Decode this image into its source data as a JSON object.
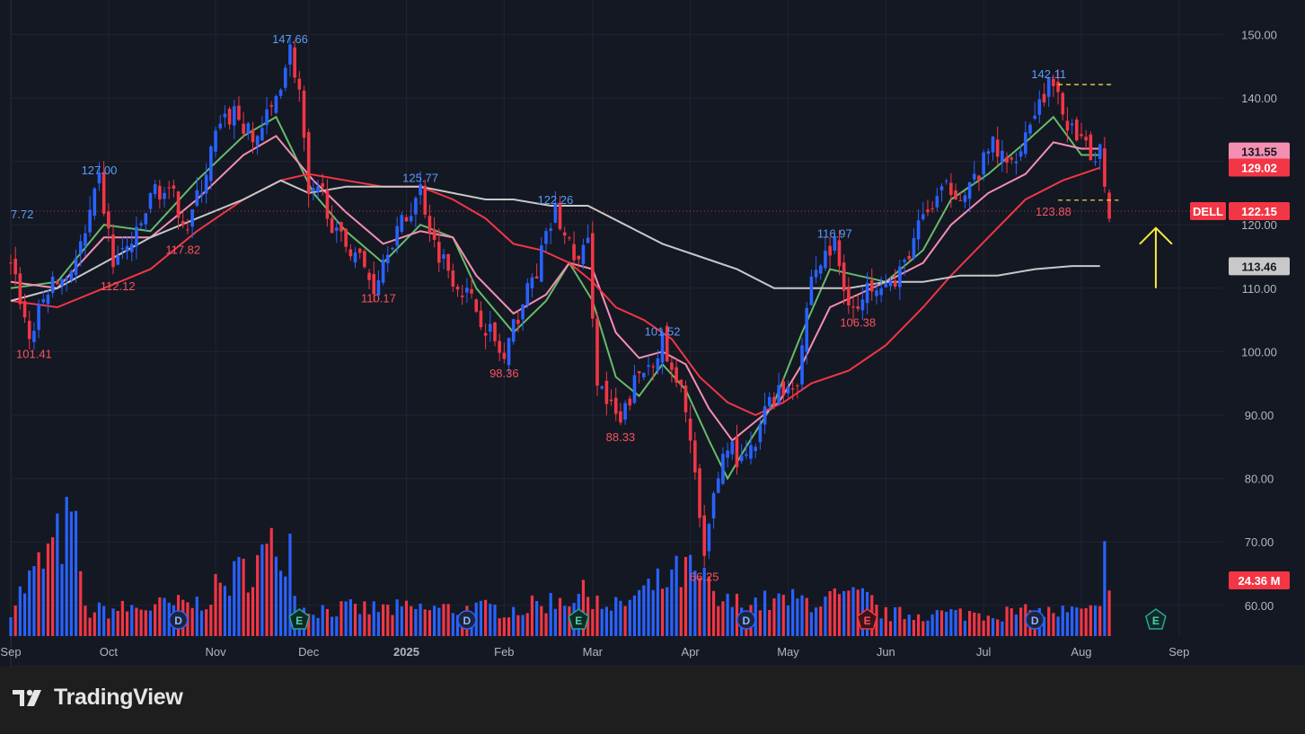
{
  "colors": {
    "background": "#141823",
    "grid": "#1f2431",
    "up": "#2962ff",
    "down": "#f23645",
    "ma_green": "#66bb6a",
    "ma_pink": "#f48fb1",
    "ma_red": "#f23645",
    "ma_gray": "#c8c8c8",
    "axis_text": "#b2b5be",
    "highlight_yellow": "#ffeb3b"
  },
  "branding": {
    "name": "TradingView"
  },
  "chart_data": {
    "type": "candlestick",
    "ticker": "DELL",
    "y_axis": {
      "ticks": [
        "150.00",
        "140.00",
        "130.00",
        "120.00",
        "110.00",
        "100.00",
        "90.00",
        "80.00",
        "70.00",
        "60.00"
      ],
      "tick_values": [
        150,
        140,
        130,
        120,
        110,
        100,
        90,
        80,
        70,
        60
      ]
    },
    "x_axis": {
      "labels": [
        {
          "label": "Sep",
          "x": 0
        },
        {
          "label": "Oct",
          "x": 21
        },
        {
          "label": "Nov",
          "x": 44
        },
        {
          "label": "Dec",
          "x": 64
        },
        {
          "label": "2025",
          "x": 85
        },
        {
          "label": "Feb",
          "x": 106
        },
        {
          "label": "Mar",
          "x": 125
        },
        {
          "label": "Apr",
          "x": 146
        },
        {
          "label": "May",
          "x": 167
        },
        {
          "label": "Jun",
          "x": 188
        },
        {
          "label": "Jul",
          "x": 209
        },
        {
          "label": "Aug",
          "x": 230
        },
        {
          "label": "Sep",
          "x": 251
        }
      ]
    },
    "price_path": [
      [
        0,
        115
      ],
      [
        4,
        102
      ],
      [
        8,
        110
      ],
      [
        12,
        112
      ],
      [
        16,
        118
      ],
      [
        19,
        127
      ],
      [
        22,
        114
      ],
      [
        27,
        118
      ],
      [
        31,
        126
      ],
      [
        35,
        124
      ],
      [
        38,
        120
      ],
      [
        41,
        126
      ],
      [
        44,
        134
      ],
      [
        48,
        138
      ],
      [
        52,
        133
      ],
      [
        56,
        138
      ],
      [
        60,
        147.66
      ],
      [
        62,
        141
      ],
      [
        64,
        124
      ],
      [
        67,
        125
      ],
      [
        70,
        118
      ],
      [
        74,
        116
      ],
      [
        78,
        110.17
      ],
      [
        81,
        117
      ],
      [
        85,
        121
      ],
      [
        88,
        125.77
      ],
      [
        91,
        117
      ],
      [
        95,
        112
      ],
      [
        99,
        108
      ],
      [
        103,
        103
      ],
      [
        106,
        98.36
      ],
      [
        109,
        106
      ],
      [
        113,
        113
      ],
      [
        117,
        122.26
      ],
      [
        119,
        118
      ],
      [
        122,
        114
      ],
      [
        124,
        117
      ],
      [
        126,
        96
      ],
      [
        128,
        92
      ],
      [
        131,
        88.33
      ],
      [
        134,
        95
      ],
      [
        137,
        98
      ],
      [
        140,
        101.52
      ],
      [
        142,
        96
      ],
      [
        145,
        92
      ],
      [
        147,
        80
      ],
      [
        149,
        66.25
      ],
      [
        151,
        78
      ],
      [
        154,
        86
      ],
      [
        157,
        82
      ],
      [
        160,
        85
      ],
      [
        163,
        93
      ],
      [
        166,
        94
      ],
      [
        169,
        96
      ],
      [
        172,
        112
      ],
      [
        175,
        115
      ],
      [
        177,
        116.97
      ],
      [
        179,
        110
      ],
      [
        182,
        106.38
      ],
      [
        185,
        111
      ],
      [
        188,
        112
      ],
      [
        190,
        110
      ],
      [
        193,
        116
      ],
      [
        196,
        121
      ],
      [
        199,
        124
      ],
      [
        202,
        126
      ],
      [
        205,
        125
      ],
      [
        208,
        128
      ],
      [
        211,
        133
      ],
      [
        214,
        129
      ],
      [
        217,
        133
      ],
      [
        220,
        138
      ],
      [
        223,
        142.11
      ],
      [
        226,
        138
      ],
      [
        229,
        133
      ],
      [
        232,
        131
      ],
      [
        234,
        132
      ],
      [
        236,
        122.15
      ]
    ],
    "volume_profile": [
      [
        0,
        5.5
      ],
      [
        14,
        22
      ],
      [
        16,
        4.5
      ],
      [
        40,
        6
      ],
      [
        60,
        18
      ],
      [
        62,
        5
      ],
      [
        110,
        5
      ],
      [
        118,
        7
      ],
      [
        126,
        8
      ],
      [
        128,
        4.5
      ],
      [
        145,
        12
      ],
      [
        149,
        10
      ],
      [
        152,
        6
      ],
      [
        184,
        7
      ],
      [
        186,
        5
      ],
      [
        188,
        4
      ],
      [
        234,
        4.5
      ],
      [
        236,
        24.36
      ]
    ],
    "volume_max": 30,
    "moving_averages": [
      {
        "id": "ma_green",
        "points": [
          [
            0,
            110
          ],
          [
            10,
            111
          ],
          [
            20,
            120
          ],
          [
            30,
            119
          ],
          [
            40,
            127
          ],
          [
            50,
            134
          ],
          [
            57,
            137
          ],
          [
            65,
            125
          ],
          [
            72,
            119
          ],
          [
            80,
            114
          ],
          [
            88,
            120
          ],
          [
            95,
            118
          ],
          [
            100,
            110
          ],
          [
            108,
            103
          ],
          [
            115,
            108
          ],
          [
            120,
            114
          ],
          [
            125,
            108
          ],
          [
            130,
            96
          ],
          [
            135,
            93
          ],
          [
            140,
            98
          ],
          [
            145,
            94
          ],
          [
            150,
            86
          ],
          [
            154,
            80
          ],
          [
            158,
            85
          ],
          [
            164,
            92
          ],
          [
            170,
            103
          ],
          [
            176,
            113
          ],
          [
            182,
            112
          ],
          [
            188,
            111
          ],
          [
            196,
            116
          ],
          [
            202,
            124
          ],
          [
            210,
            128
          ],
          [
            218,
            133
          ],
          [
            224,
            137
          ],
          [
            230,
            131
          ],
          [
            234,
            131
          ]
        ]
      },
      {
        "id": "ma_pink",
        "points": [
          [
            0,
            111
          ],
          [
            10,
            110
          ],
          [
            20,
            118
          ],
          [
            30,
            118
          ],
          [
            40,
            124
          ],
          [
            50,
            131
          ],
          [
            57,
            134
          ],
          [
            65,
            127
          ],
          [
            72,
            122
          ],
          [
            80,
            117
          ],
          [
            88,
            119
          ],
          [
            95,
            118
          ],
          [
            100,
            112
          ],
          [
            108,
            106
          ],
          [
            115,
            109
          ],
          [
            120,
            114
          ],
          [
            125,
            113
          ],
          [
            130,
            103
          ],
          [
            135,
            99
          ],
          [
            140,
            100
          ],
          [
            145,
            98
          ],
          [
            150,
            91
          ],
          [
            155,
            86
          ],
          [
            160,
            89
          ],
          [
            165,
            92
          ],
          [
            170,
            98
          ],
          [
            176,
            107
          ],
          [
            182,
            109
          ],
          [
            188,
            111
          ],
          [
            196,
            114
          ],
          [
            202,
            120
          ],
          [
            210,
            125
          ],
          [
            218,
            128
          ],
          [
            224,
            133
          ],
          [
            230,
            132
          ],
          [
            234,
            132
          ]
        ]
      },
      {
        "id": "ma_red",
        "points": [
          [
            0,
            108
          ],
          [
            10,
            107
          ],
          [
            20,
            110
          ],
          [
            30,
            113
          ],
          [
            40,
            119
          ],
          [
            50,
            124
          ],
          [
            58,
            127
          ],
          [
            64,
            128
          ],
          [
            72,
            127
          ],
          [
            80,
            126
          ],
          [
            88,
            126
          ],
          [
            95,
            124
          ],
          [
            102,
            121
          ],
          [
            108,
            117
          ],
          [
            114,
            116
          ],
          [
            120,
            114
          ],
          [
            125,
            111
          ],
          [
            130,
            107
          ],
          [
            136,
            105
          ],
          [
            142,
            102
          ],
          [
            148,
            96
          ],
          [
            154,
            92
          ],
          [
            160,
            90
          ],
          [
            166,
            92
          ],
          [
            172,
            95
          ],
          [
            180,
            97
          ],
          [
            188,
            101
          ],
          [
            196,
            107
          ],
          [
            202,
            112
          ],
          [
            210,
            118
          ],
          [
            218,
            124
          ],
          [
            226,
            127
          ],
          [
            234,
            129
          ]
        ]
      },
      {
        "id": "ma_gray",
        "points": [
          [
            0,
            108
          ],
          [
            10,
            110
          ],
          [
            20,
            114
          ],
          [
            30,
            118
          ],
          [
            40,
            121
          ],
          [
            50,
            124
          ],
          [
            58,
            127
          ],
          [
            64,
            125
          ],
          [
            72,
            126
          ],
          [
            80,
            126
          ],
          [
            88,
            126
          ],
          [
            95,
            125
          ],
          [
            102,
            124
          ],
          [
            108,
            124
          ],
          [
            116,
            123
          ],
          [
            124,
            123
          ],
          [
            132,
            120
          ],
          [
            140,
            117
          ],
          [
            148,
            115
          ],
          [
            156,
            113
          ],
          [
            164,
            110
          ],
          [
            172,
            110
          ],
          [
            180,
            110
          ],
          [
            188,
            111
          ],
          [
            196,
            111
          ],
          [
            204,
            112
          ],
          [
            212,
            112
          ],
          [
            220,
            113
          ],
          [
            228,
            113.5
          ],
          [
            234,
            113.5
          ]
        ]
      }
    ],
    "annotations": [
      {
        "text": "7.72",
        "x": 0,
        "y": 120,
        "color": "#2962ff",
        "anchor": "start"
      },
      {
        "text": "101.41",
        "x": 5,
        "y": 101.41,
        "color": "#f23645",
        "anchor": "middle"
      },
      {
        "text": "127.00",
        "x": 19,
        "y": 127,
        "color": "#2962ff",
        "anchor": "middle"
      },
      {
        "text": "112.12",
        "x": 23,
        "y": 112.12,
        "color": "#f23645",
        "anchor": "middle"
      },
      {
        "text": "117.82",
        "x": 37,
        "y": 117.82,
        "color": "#f23645",
        "anchor": "middle"
      },
      {
        "text": "147.66",
        "x": 60,
        "y": 147.66,
        "color": "#2962ff",
        "anchor": "middle"
      },
      {
        "text": "110.17",
        "x": 79,
        "y": 110.17,
        "color": "#f23645",
        "anchor": "middle"
      },
      {
        "text": "125.77",
        "x": 88,
        "y": 125.77,
        "color": "#2962ff",
        "anchor": "middle"
      },
      {
        "text": "98.36",
        "x": 106,
        "y": 98.36,
        "color": "#f23645",
        "anchor": "middle"
      },
      {
        "text": "122.26",
        "x": 117,
        "y": 122.26,
        "color": "#2962ff",
        "anchor": "middle"
      },
      {
        "text": "88.33",
        "x": 131,
        "y": 88.33,
        "color": "#f23645",
        "anchor": "middle"
      },
      {
        "text": "101.52",
        "x": 140,
        "y": 101.52,
        "color": "#2962ff",
        "anchor": "middle"
      },
      {
        "text": "66.25",
        "x": 149,
        "y": 66.25,
        "color": "#f23645",
        "anchor": "middle"
      },
      {
        "text": "116.97",
        "x": 177,
        "y": 116.97,
        "color": "#2962ff",
        "anchor": "middle"
      },
      {
        "text": "106.38",
        "x": 182,
        "y": 106.38,
        "color": "#f23645",
        "anchor": "middle"
      },
      {
        "text": "142.11",
        "x": 223,
        "y": 142.11,
        "color": "#2962ff",
        "anchor": "middle"
      },
      {
        "text": "123.88",
        "x": 224,
        "y": 123.88,
        "color": "#f23645",
        "anchor": "middle"
      }
    ],
    "dashed_levels": [
      {
        "value": 142.11,
        "x_start": 225,
        "x_end": 237
      },
      {
        "value": 123.88,
        "x_start": 225,
        "x_end": 238
      }
    ],
    "price_labels": [
      {
        "text": "131.55",
        "value": 131.55,
        "bg": "#f48fb1",
        "fg": "#141823"
      },
      {
        "text": "129.02",
        "value": 129.02,
        "bg": "#f23645",
        "fg": "#ffffff"
      },
      {
        "text": "122.15",
        "value": 122.15,
        "bg": "#f23645",
        "fg": "#ffffff",
        "ticker": "DELL"
      },
      {
        "text": "113.46",
        "value": 113.46,
        "bg": "#c8c8c8",
        "fg": "#141823"
      },
      {
        "text": "24.36 M",
        "volume": true,
        "bg": "#f23645",
        "fg": "#ffffff"
      }
    ],
    "current_price": 122.15,
    "events": [
      {
        "type": "D",
        "x": 36,
        "kind": "dividend"
      },
      {
        "type": "E",
        "x": 62,
        "kind": "earnings"
      },
      {
        "type": "D",
        "x": 98,
        "kind": "dividend"
      },
      {
        "type": "E",
        "x": 122,
        "kind": "earnings"
      },
      {
        "type": "D",
        "x": 158,
        "kind": "dividend"
      },
      {
        "type": "E",
        "x": 184,
        "kind": "earnings-red"
      },
      {
        "type": "D",
        "x": 220,
        "kind": "dividend"
      },
      {
        "type": "E",
        "x": 246,
        "kind": "earnings"
      }
    ],
    "arrow": {
      "x": 246,
      "from": 110,
      "to": 119.5
    }
  }
}
